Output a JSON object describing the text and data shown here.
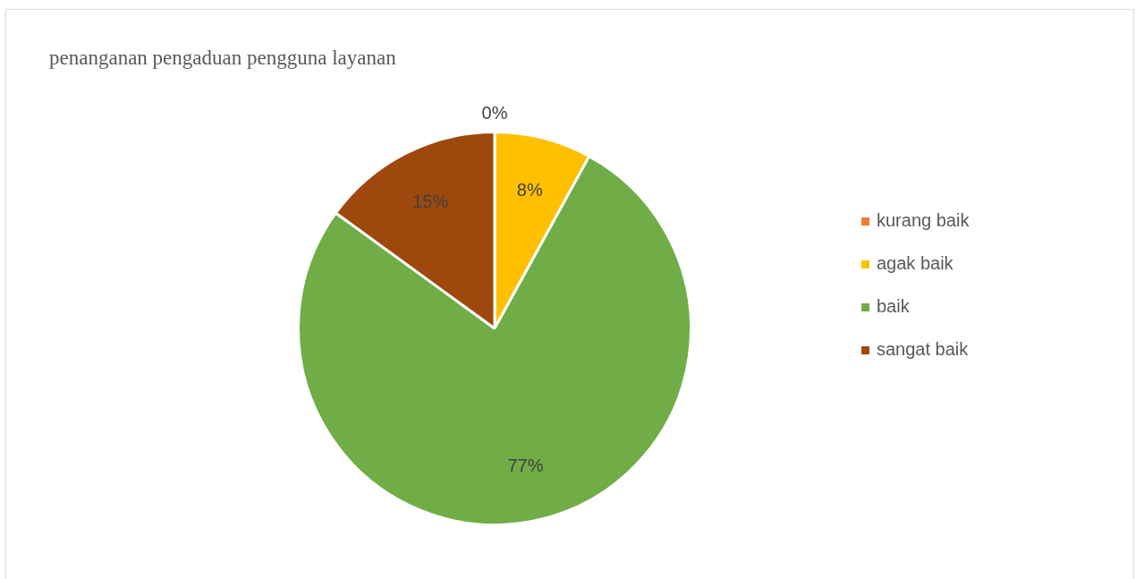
{
  "chart_data": {
    "type": "pie",
    "title": "penanganan pengaduan pengguna layanan",
    "categories": [
      "kurang baik",
      "agak baik",
      "baik",
      "sangat baik"
    ],
    "values": [
      0,
      8,
      77,
      15
    ],
    "colors": [
      "#ed7d31",
      "#ffc000",
      "#70ad47",
      "#9e480e"
    ],
    "value_labels": [
      "0%",
      "8%",
      "77%",
      "15%"
    ],
    "legend": "right"
  }
}
